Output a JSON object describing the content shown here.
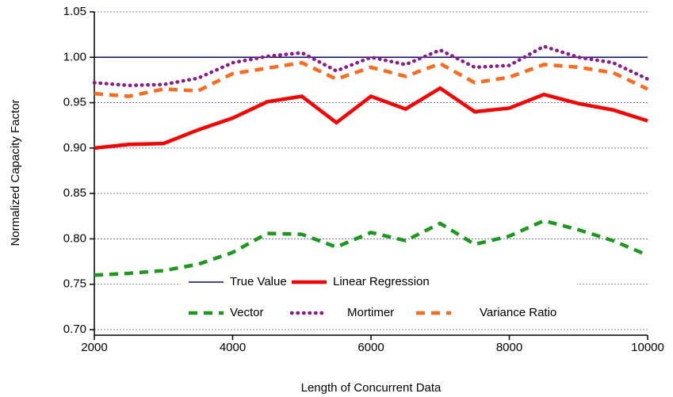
{
  "chart_data": {
    "type": "line",
    "x_label": "Length of Concurrent Data",
    "y_label": "Normalized Capacity Factor",
    "x": [
      2000,
      2500,
      3000,
      3500,
      4000,
      4500,
      5000,
      5500,
      6000,
      6500,
      7000,
      7500,
      8000,
      8500,
      9000,
      9500,
      10000
    ],
    "xlim": [
      2000,
      10000
    ],
    "xticks": [
      2000,
      4000,
      6000,
      8000,
      10000
    ],
    "ylim": [
      0.7,
      1.05
    ],
    "yticks": [
      {
        "value": 0.7,
        "label": "0.70"
      },
      0.75,
      {
        "value": 0.8,
        "label": "0.80"
      },
      0.85,
      {
        "value": 0.9,
        "label": "0.90"
      },
      0.95,
      {
        "value": 1.0,
        "label": "1.00"
      },
      1.05
    ],
    "grid": true,
    "legend": "bottom",
    "series": [
      {
        "name": "True Value",
        "color": "#0000cc",
        "line_style": "solid",
        "values": [
          1,
          1,
          1,
          1,
          1,
          1,
          1,
          1,
          1,
          1,
          1,
          1,
          1,
          1,
          1,
          1,
          1
        ]
      },
      {
        "name": "Linear Regression",
        "color": "#ff0000",
        "line_style": "solid",
        "values": [
          0.9,
          0.904,
          0.905,
          0.92,
          0.933,
          0.951,
          0.957,
          0.928,
          0.957,
          0.943,
          0.966,
          0.94,
          0.944,
          0.959,
          0.949,
          0.942,
          0.93
        ]
      },
      {
        "name": "Vector",
        "color": "#1a9a1a",
        "line_style": "dashed",
        "values": [
          0.76,
          0.762,
          0.765,
          0.772,
          0.785,
          0.806,
          0.805,
          0.791,
          0.807,
          0.798,
          0.817,
          0.794,
          0.803,
          0.82,
          0.81,
          0.798,
          0.782
        ]
      },
      {
        "name": "Mortimer",
        "color": "#8b1a8b",
        "line_style": "dotted",
        "values": [
          0.972,
          0.969,
          0.97,
          0.977,
          0.994,
          1.001,
          1.005,
          0.985,
          1.0,
          0.992,
          1.008,
          0.989,
          0.991,
          1.012,
          1.0,
          0.994,
          0.976
        ]
      },
      {
        "name": "Variance Ratio",
        "color": "#ff6a1a",
        "line_style": "dashed",
        "values": [
          0.96,
          0.957,
          0.965,
          0.963,
          0.982,
          0.988,
          0.994,
          0.976,
          0.989,
          0.979,
          0.993,
          0.972,
          0.978,
          0.992,
          0.989,
          0.983,
          0.965
        ]
      }
    ]
  }
}
